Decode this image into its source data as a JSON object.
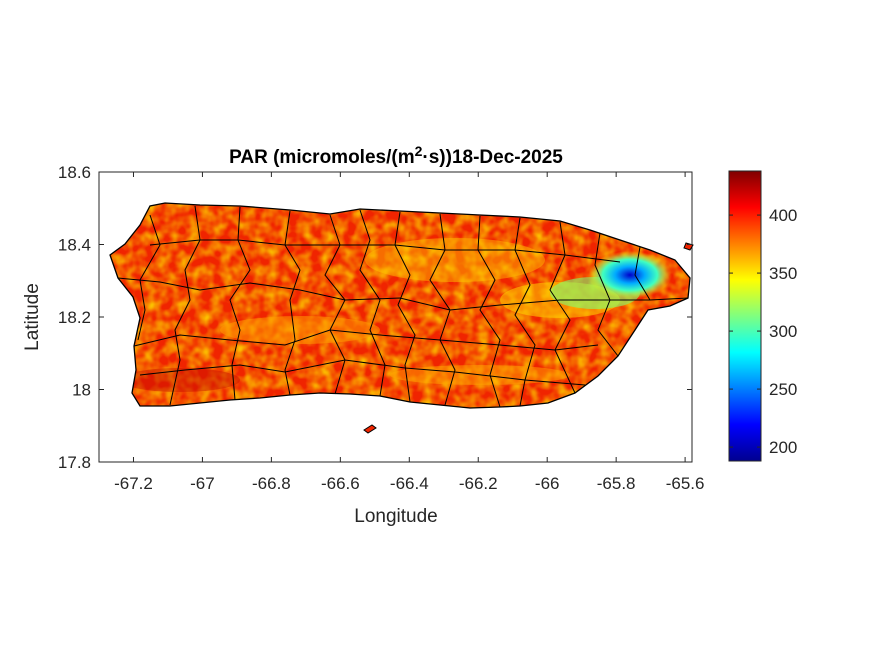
{
  "title": {
    "prefix": "PAR (micromoles/(m",
    "superscript": "2",
    "suffix": "·s))18-Dec-2025"
  },
  "axes": {
    "xlabel": "Longitude",
    "ylabel": "Latitude",
    "xlim": [
      -67.3,
      -65.58
    ],
    "ylim": [
      17.8,
      18.6
    ],
    "xticks": [
      -67.2,
      -67,
      -66.8,
      -66.6,
      -66.4,
      -66.2,
      -66,
      -65.8,
      -65.6
    ],
    "xtick_labels": [
      "-67.2",
      "-67",
      "-66.8",
      "-66.6",
      "-66.4",
      "-66.2",
      "-66",
      "-65.8",
      "-65.6"
    ],
    "yticks": [
      17.8,
      18,
      18.2,
      18.4,
      18.6
    ],
    "ytick_labels": [
      "17.8",
      "18",
      "18.2",
      "18.4",
      "18.6"
    ]
  },
  "colorbar": {
    "colormap": "jet",
    "clim": [
      188,
      438
    ],
    "ticks": [
      200,
      250,
      300,
      350,
      400
    ],
    "tick_labels": [
      "200",
      "250",
      "300",
      "350",
      "400"
    ]
  },
  "map_data": {
    "type": "heatmap",
    "region": "Puerto Rico",
    "boundaries": "municipalities",
    "variable": "PAR",
    "date": "18-Dec-2025",
    "dominant_range": [
      370,
      438
    ],
    "low_value_zone": {
      "approx_lon": -65.8,
      "approx_lat": 18.32,
      "min_value": 195
    }
  }
}
